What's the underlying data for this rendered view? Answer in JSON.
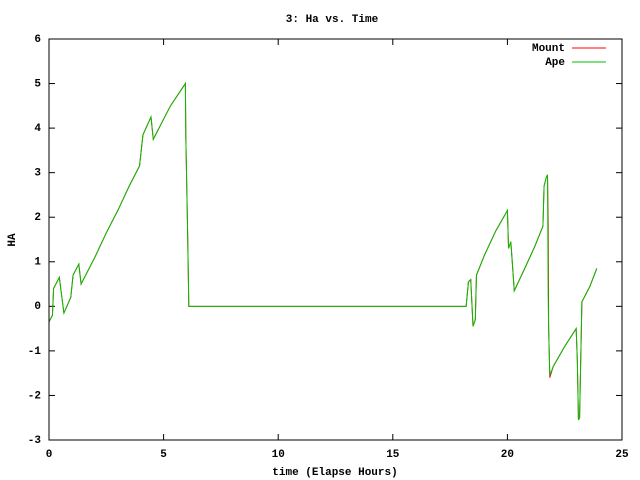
{
  "chart_data": {
    "type": "line",
    "title": "3: Ha vs. Time",
    "xlabel": "time (Elapse Hours)",
    "ylabel": "HA",
    "x": [
      0,
      0.15,
      0.2,
      0.45,
      0.65,
      0.95,
      1.05,
      1.3,
      1.4,
      1.55,
      2.0,
      2.5,
      3.0,
      3.5,
      3.95,
      4.1,
      4.45,
      4.55,
      5.0,
      5.3,
      5.95,
      5.97,
      6.05,
      6.1,
      18.2,
      18.3,
      18.4,
      18.5,
      18.6,
      18.65,
      19.0,
      19.5,
      20.0,
      20.05,
      20.15,
      20.3,
      20.8,
      21.2,
      21.55,
      21.6,
      21.7,
      21.75,
      21.78,
      21.8,
      21.85,
      22.0,
      22.5,
      23.0,
      23.05,
      23.1,
      23.15,
      23.2,
      23.25,
      23.6,
      23.9
    ],
    "series": [
      {
        "name": "Mount",
        "color": "#ff0000",
        "values": [
          -0.35,
          -0.2,
          0.4,
          0.65,
          -0.15,
          0.2,
          0.7,
          0.95,
          0.5,
          0.65,
          1.1,
          1.65,
          2.15,
          2.7,
          3.15,
          3.85,
          4.25,
          3.75,
          4.2,
          4.5,
          5.0,
          3.8,
          1.6,
          0,
          0,
          0.55,
          0.6,
          -0.45,
          -0.3,
          0.7,
          1.15,
          1.7,
          2.15,
          1.3,
          1.45,
          0.35,
          0.9,
          1.35,
          1.8,
          2.7,
          2.9,
          2.95,
          1.8,
          -0.5,
          -1.6,
          -1.35,
          -0.9,
          -0.5,
          -1.2,
          -2.55,
          -2.5,
          -1.2,
          0.1,
          0.45,
          0.85
        ]
      },
      {
        "name": "Ape",
        "color": "#00c000",
        "values": [
          -0.35,
          -0.2,
          0.4,
          0.65,
          -0.15,
          0.2,
          0.7,
          0.95,
          0.5,
          0.65,
          1.1,
          1.65,
          2.15,
          2.7,
          3.15,
          3.85,
          4.25,
          3.75,
          4.2,
          4.5,
          5.0,
          3.8,
          1.6,
          0,
          0,
          0.55,
          0.6,
          -0.45,
          -0.3,
          0.7,
          1.15,
          1.7,
          2.15,
          1.3,
          1.45,
          0.35,
          0.9,
          1.35,
          1.8,
          2.7,
          2.9,
          2.95,
          0.2,
          -0.5,
          -1.55,
          -1.35,
          -0.9,
          -0.5,
          -1.2,
          -2.55,
          -2.5,
          -1.2,
          0.1,
          0.45,
          0.85
        ]
      }
    ],
    "xlim": [
      0,
      25
    ],
    "xticks": [
      0,
      5,
      10,
      15,
      20,
      25
    ],
    "ylim": [
      -3,
      6
    ],
    "yticks": [
      -3,
      -2,
      -1,
      0,
      1,
      2,
      3,
      4,
      5,
      6
    ],
    "legend": "top-right"
  }
}
